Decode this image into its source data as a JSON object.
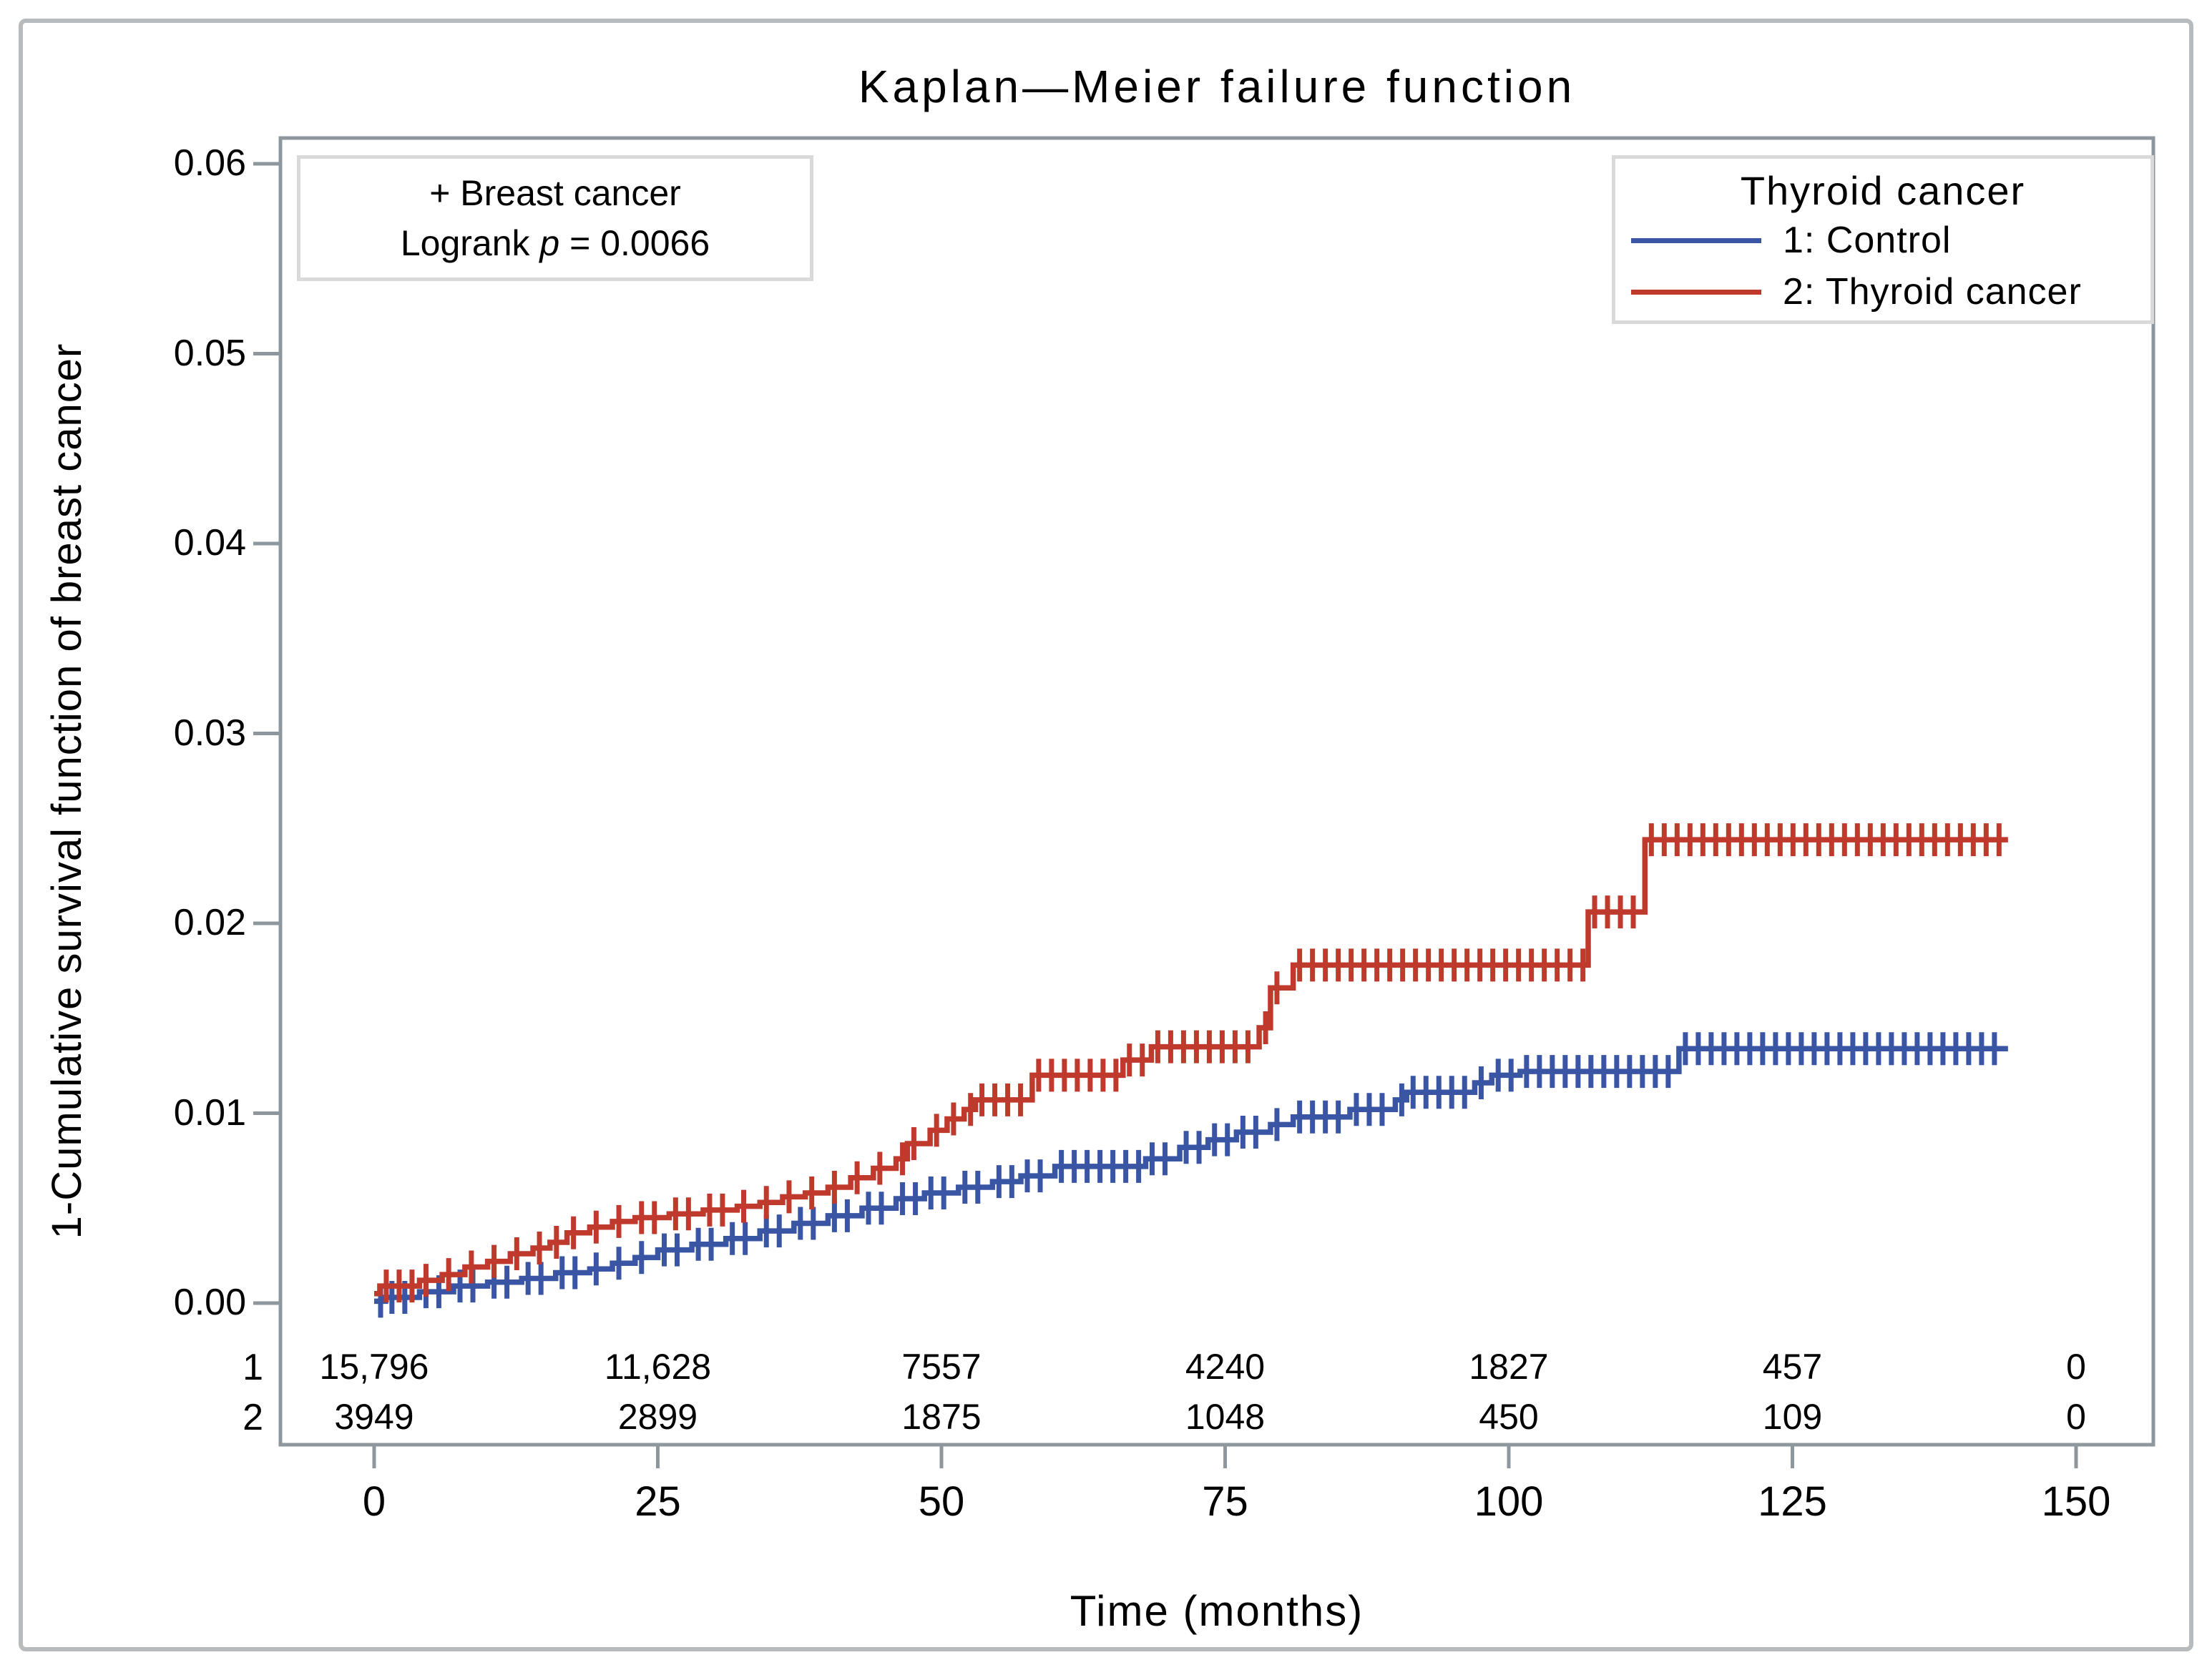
{
  "figure": {
    "title": "Kaplan—Meier failure function"
  },
  "axes": {
    "x": {
      "title": "Time (months)",
      "tick_values": [
        0,
        25,
        50,
        75,
        100,
        125,
        150
      ]
    },
    "y": {
      "title": "1-Cumulative survival function of breast cancer",
      "tick_labels": [
        "0.00",
        "0.01",
        "0.02",
        "0.03",
        "0.04",
        "0.05",
        "0.06"
      ],
      "tick_values": [
        0,
        0.01,
        0.02,
        0.03,
        0.04,
        0.05,
        0.06
      ]
    }
  },
  "annotation": {
    "line1": "+ Breast cancer",
    "logrank_prefix": "Logrank ",
    "p_symbol": "p",
    "logrank_suffix": " = 0.0066"
  },
  "legend": {
    "title": "Thyroid cancer",
    "entries": [
      {
        "label": "1: Control",
        "color": "#3a55a4"
      },
      {
        "label": "2: Thyroid cancer",
        "color": "#bf3a2c"
      }
    ]
  },
  "risk_table": {
    "times": [
      0,
      25,
      50,
      75,
      100,
      125,
      150
    ],
    "rows": [
      {
        "label": "1",
        "counts": [
          "15,796",
          "11,628",
          "7557",
          "4240",
          "1827",
          "457",
          "0"
        ]
      },
      {
        "label": "2",
        "counts": [
          "3949",
          "2899",
          "1875",
          "1048",
          "450",
          "109",
          "0"
        ]
      }
    ]
  },
  "chart_data": {
    "type": "line",
    "subtype": "kaplan-meier-failure-step",
    "title": "Kaplan—Meier failure function",
    "xlabel": "Time (months)",
    "ylabel": "1-Cumulative survival function of breast cancer",
    "xlim": [
      0,
      150
    ],
    "ylim": [
      0,
      0.06
    ],
    "grid": false,
    "legend_position": "top-right",
    "logrank_p": "0.0066",
    "series": [
      {
        "name": "1: Control",
        "color": "#3a55a4",
        "end_time": 144,
        "points": [
          [
            0,
            0.0001
          ],
          [
            1,
            0.0003
          ],
          [
            4,
            0.0006
          ],
          [
            7,
            0.0009
          ],
          [
            10,
            0.0011
          ],
          [
            13,
            0.0013
          ],
          [
            16,
            0.0016
          ],
          [
            19,
            0.0018
          ],
          [
            21,
            0.0021
          ],
          [
            23,
            0.0024
          ],
          [
            25,
            0.0028
          ],
          [
            28,
            0.0031
          ],
          [
            31,
            0.0034
          ],
          [
            34,
            0.0038
          ],
          [
            37,
            0.0042
          ],
          [
            40,
            0.0046
          ],
          [
            43,
            0.005
          ],
          [
            46,
            0.0055
          ],
          [
            48.5,
            0.0058
          ],
          [
            51.5,
            0.0061
          ],
          [
            54.5,
            0.0064
          ],
          [
            57,
            0.0067
          ],
          [
            60,
            0.0072
          ],
          [
            68,
            0.0076
          ],
          [
            71,
            0.0082
          ],
          [
            73.5,
            0.0086
          ],
          [
            76,
            0.009
          ],
          [
            79,
            0.0094
          ],
          [
            81,
            0.0098
          ],
          [
            86,
            0.0102
          ],
          [
            90,
            0.0107
          ],
          [
            91,
            0.0111
          ],
          [
            97,
            0.0116
          ],
          [
            98.5,
            0.012
          ],
          [
            101,
            0.0122
          ],
          [
            115,
            0.0134
          ]
        ]
      },
      {
        "name": "2: Thyroid cancer",
        "color": "#bf3a2c",
        "end_time": 144,
        "points": [
          [
            0,
            0.0005
          ],
          [
            0.5,
            0.0009
          ],
          [
            4,
            0.0012
          ],
          [
            6,
            0.0015
          ],
          [
            8,
            0.0019
          ],
          [
            10,
            0.0022
          ],
          [
            12,
            0.0026
          ],
          [
            14,
            0.0029
          ],
          [
            15.5,
            0.0032
          ],
          [
            17,
            0.0037
          ],
          [
            19,
            0.004
          ],
          [
            21,
            0.0043
          ],
          [
            23,
            0.0045
          ],
          [
            26,
            0.0047
          ],
          [
            29,
            0.0049
          ],
          [
            32,
            0.0051
          ],
          [
            34,
            0.0053
          ],
          [
            36,
            0.0056
          ],
          [
            38,
            0.0058
          ],
          [
            40,
            0.0061
          ],
          [
            42,
            0.0066
          ],
          [
            44,
            0.0071
          ],
          [
            46,
            0.0076
          ],
          [
            47,
            0.0084
          ],
          [
            49,
            0.0091
          ],
          [
            50.5,
            0.0097
          ],
          [
            52,
            0.0102
          ],
          [
            53,
            0.0107
          ],
          [
            58,
            0.012
          ],
          [
            66,
            0.0128
          ],
          [
            68.5,
            0.0135
          ],
          [
            78,
            0.0145
          ],
          [
            79,
            0.0166
          ],
          [
            81,
            0.0178
          ],
          [
            107,
            0.0206
          ],
          [
            112,
            0.0244
          ]
        ]
      }
    ]
  }
}
